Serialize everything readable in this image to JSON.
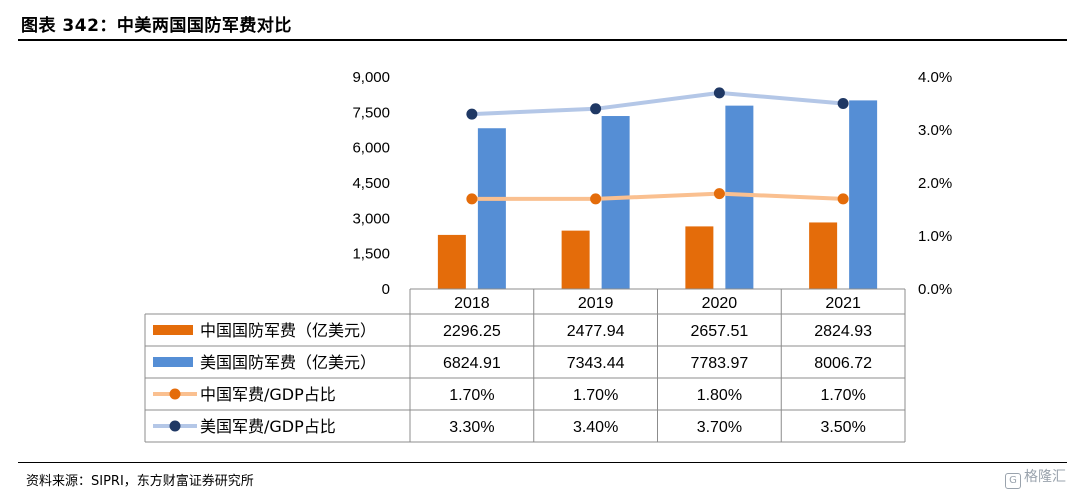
{
  "header": {
    "title": "图表 342：中美两国国防军费对比"
  },
  "footer": {
    "source": "资料来源：SIPRI，东方财富证券研究所",
    "watermark": "格隆汇"
  },
  "chart_data": {
    "type": "bar",
    "categories": [
      "2018",
      "2019",
      "2020",
      "2021"
    ],
    "series": [
      {
        "name": "中国国防军费（亿美元）",
        "kind": "bar",
        "axis": "left",
        "color": "#E46C0A",
        "values": [
          2296.25,
          2477.94,
          2657.51,
          2824.93
        ],
        "labels": [
          "2296.25",
          "2477.94",
          "2657.51",
          "2824.93"
        ]
      },
      {
        "name": "美国国防军费（亿美元）",
        "kind": "bar",
        "axis": "left",
        "color": "#558ED5",
        "values": [
          6824.91,
          7343.44,
          7783.97,
          8006.72
        ],
        "labels": [
          "6824.91",
          "7343.44",
          "7783.97",
          "8006.72"
        ]
      },
      {
        "name": "中国军费/GDP占比",
        "kind": "line",
        "axis": "right",
        "color": "#FAC090",
        "marker_color": "#E46C0A",
        "values": [
          1.7,
          1.7,
          1.8,
          1.7
        ],
        "labels": [
          "1.70%",
          "1.70%",
          "1.80%",
          "1.70%"
        ]
      },
      {
        "name": "美国军费/GDP占比",
        "kind": "line",
        "axis": "right",
        "color": "#B4C7E7",
        "marker_color": "#1F3864",
        "values": [
          3.3,
          3.4,
          3.7,
          3.5
        ],
        "labels": [
          "3.30%",
          "3.40%",
          "3.70%",
          "3.50%"
        ]
      }
    ],
    "y_left": {
      "ylim": [
        0,
        9000
      ],
      "ticks": [
        0,
        1500,
        3000,
        4500,
        6000,
        7500,
        9000
      ],
      "tick_labels": [
        "0",
        "1,500",
        "3,000",
        "4,500",
        "6,000",
        "7,500",
        "9,000"
      ]
    },
    "y_right": {
      "ylim": [
        0,
        4
      ],
      "ticks": [
        0,
        1,
        2,
        3,
        4
      ],
      "tick_labels": [
        "0.0%",
        "1.0%",
        "2.0%",
        "3.0%",
        "4.0%"
      ]
    },
    "grid": false,
    "legend": "data table below chart"
  }
}
